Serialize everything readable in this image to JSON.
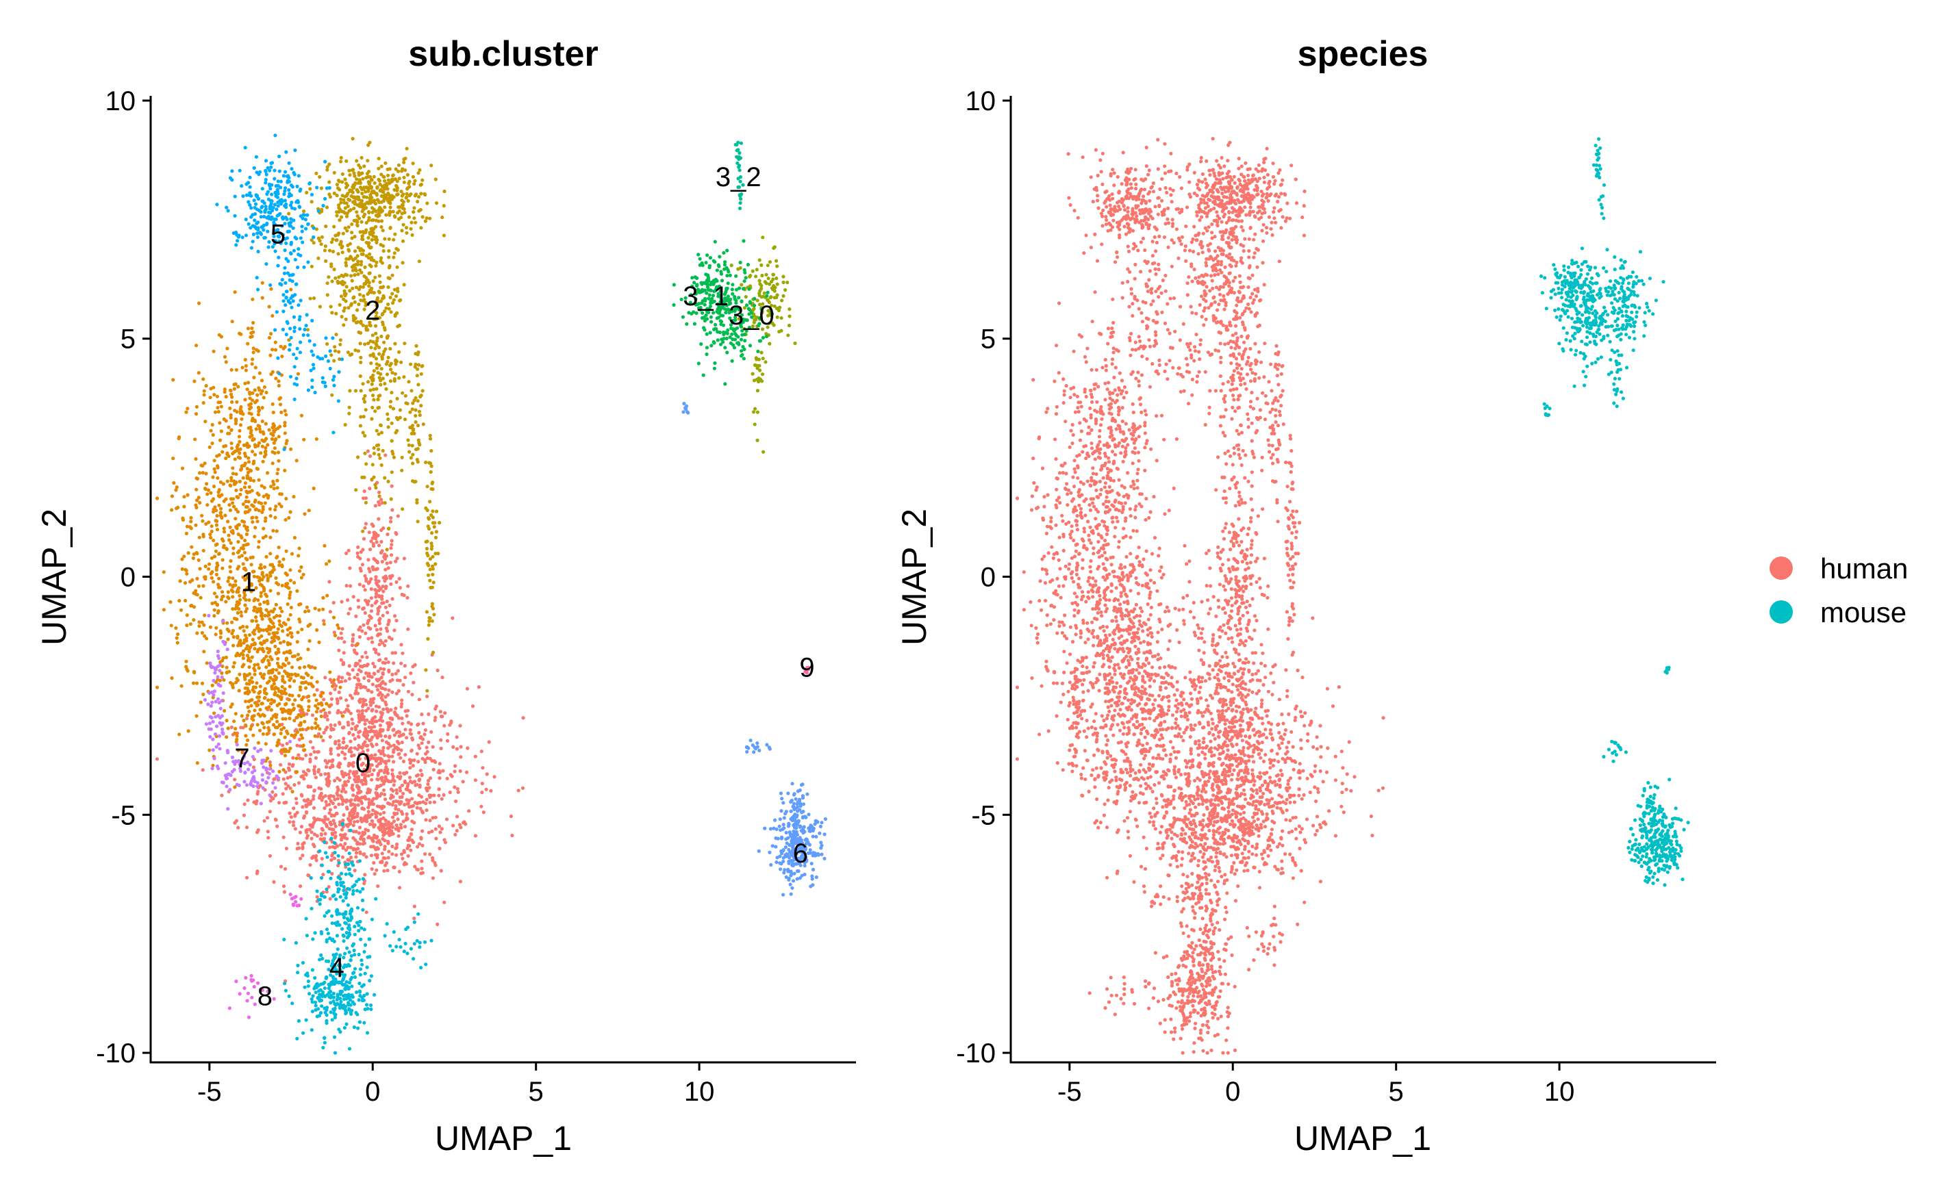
{
  "chart_data": [
    {
      "type": "scatter",
      "title": "sub.cluster",
      "xlabel": "UMAP_1",
      "ylabel": "UMAP_2",
      "xlim": [
        -6.8,
        14.8
      ],
      "ylim": [
        -10.2,
        10.1
      ],
      "xticks": [
        -5,
        0,
        5,
        10
      ],
      "yticks": [
        -10,
        -5,
        0,
        5,
        10
      ],
      "grid": false,
      "legend": "none",
      "point_size": 2.6,
      "clusters": [
        {
          "name": "0",
          "color": "#F8766D",
          "label_pos": [
            -0.3,
            -3.9
          ],
          "regions": [
            {
              "cx": -0.2,
              "cy": -4.3,
              "sx": 1.6,
              "sy": 1.0,
              "n": 1000
            },
            {
              "cx": -0.1,
              "cy": -2.2,
              "sx": 0.6,
              "sy": 1.3,
              "n": 380
            },
            {
              "cx": -0.3,
              "cy": -5.4,
              "sx": 1.2,
              "sy": 0.5,
              "n": 240
            },
            {
              "cx": 0.2,
              "cy": 0.4,
              "sx": 0.3,
              "sy": 0.9,
              "n": 130
            }
          ]
        },
        {
          "name": "1",
          "color": "#E38900",
          "label_pos": [
            -3.8,
            -0.1
          ],
          "regions": [
            {
              "cx": -4.3,
              "cy": 0.8,
              "sx": 0.9,
              "sy": 1.8,
              "n": 620
            },
            {
              "cx": -3.2,
              "cy": -1.6,
              "sx": 0.9,
              "sy": 1.0,
              "n": 420
            },
            {
              "cx": -3.6,
              "cy": 3.2,
              "sx": 0.6,
              "sy": 1.0,
              "n": 220
            },
            {
              "cx": -2.6,
              "cy": -2.8,
              "sx": 0.7,
              "sy": 0.5,
              "n": 160
            }
          ]
        },
        {
          "name": "2",
          "color": "#C49A00",
          "label_pos": [
            0.0,
            5.6
          ],
          "regions": [
            {
              "cx": 0.1,
              "cy": 8.0,
              "sx": 0.8,
              "sy": 0.4,
              "n": 380
            },
            {
              "cx": -0.4,
              "cy": 6.3,
              "sx": 0.6,
              "sy": 0.9,
              "n": 300
            },
            {
              "cx": 0.2,
              "cy": 4.0,
              "sx": 0.4,
              "sy": 1.2,
              "n": 200
            },
            {
              "cx": 1.8,
              "cy": 0.5,
              "sx": 0.1,
              "sy": 1.3,
              "n": 70
            },
            {
              "cx": 1.3,
              "cy": 3.2,
              "sx": 0.15,
              "sy": 0.9,
              "n": 60
            }
          ]
        },
        {
          "name": "3_0",
          "color": "#99A800",
          "label_pos": [
            11.6,
            5.5
          ],
          "regions": [
            {
              "cx": 12.0,
              "cy": 5.9,
              "sx": 0.4,
              "sy": 0.4,
              "n": 120
            },
            {
              "cx": 11.8,
              "cy": 4.4,
              "sx": 0.1,
              "sy": 0.6,
              "n": 30
            }
          ]
        },
        {
          "name": "3_1",
          "color": "#00BB4E",
          "label_pos": [
            10.2,
            5.9
          ],
          "regions": [
            {
              "cx": 10.4,
              "cy": 6.0,
              "sx": 0.4,
              "sy": 0.4,
              "n": 160
            },
            {
              "cx": 11.0,
              "cy": 5.4,
              "sx": 0.5,
              "sy": 0.5,
              "n": 160
            }
          ]
        },
        {
          "name": "3_2",
          "color": "#00BF96",
          "label_pos": [
            11.2,
            8.4
          ],
          "regions": [
            {
              "cx": 11.2,
              "cy": 8.7,
              "sx": 0.05,
              "sy": 0.3,
              "n": 20
            },
            {
              "cx": 11.3,
              "cy": 7.9,
              "sx": 0.05,
              "sy": 0.2,
              "n": 8
            }
          ]
        },
        {
          "name": "4",
          "color": "#00BBDA",
          "label_pos": [
            -1.1,
            -8.2
          ],
          "regions": [
            {
              "cx": -1.1,
              "cy": -8.7,
              "sx": 0.5,
              "sy": 0.5,
              "n": 260
            },
            {
              "cx": -0.9,
              "cy": -7.0,
              "sx": 0.4,
              "sy": 0.8,
              "n": 170
            },
            {
              "cx": 1.1,
              "cy": -7.7,
              "sx": 0.3,
              "sy": 0.3,
              "n": 25
            }
          ]
        },
        {
          "name": "5",
          "color": "#00ACFC",
          "label_pos": [
            -2.9,
            7.2
          ],
          "regions": [
            {
              "cx": -3.1,
              "cy": 7.8,
              "sx": 0.6,
              "sy": 0.5,
              "n": 280
            },
            {
              "cx": -2.5,
              "cy": 5.5,
              "sx": 0.3,
              "sy": 0.9,
              "n": 80
            },
            {
              "cx": -1.5,
              "cy": 4.4,
              "sx": 0.3,
              "sy": 0.4,
              "n": 30
            }
          ]
        },
        {
          "name": "6",
          "color": "#619CFF",
          "label_pos": [
            13.1,
            -5.8
          ],
          "regions": [
            {
              "cx": 13.0,
              "cy": -5.7,
              "sx": 0.4,
              "sy": 0.35,
              "n": 240
            },
            {
              "cx": 12.9,
              "cy": -4.9,
              "sx": 0.2,
              "sy": 0.3,
              "n": 60
            },
            {
              "cx": 11.8,
              "cy": -3.6,
              "sx": 0.2,
              "sy": 0.1,
              "n": 15
            },
            {
              "cx": 9.6,
              "cy": 3.5,
              "sx": 0.05,
              "sy": 0.1,
              "n": 8
            }
          ]
        },
        {
          "name": "7",
          "color": "#C77CFF",
          "label_pos": [
            -4.0,
            -3.8
          ],
          "regions": [
            {
              "cx": -4.8,
              "cy": -2.6,
              "sx": 0.15,
              "sy": 0.7,
              "n": 70
            },
            {
              "cx": -3.7,
              "cy": -4.1,
              "sx": 0.5,
              "sy": 0.3,
              "n": 80
            }
          ]
        },
        {
          "name": "8",
          "color": "#F066EA",
          "label_pos": [
            -3.3,
            -8.8
          ],
          "regions": [
            {
              "cx": -3.5,
              "cy": -8.7,
              "sx": 0.4,
              "sy": 0.2,
              "n": 20
            },
            {
              "cx": -2.4,
              "cy": -6.8,
              "sx": 0.1,
              "sy": 0.1,
              "n": 10
            }
          ]
        },
        {
          "name": "9",
          "color": "#FF67A4",
          "label_pos": [
            13.3,
            -1.9
          ],
          "regions": [
            {
              "cx": 13.3,
              "cy": -1.9,
              "sx": 0.05,
              "sy": 0.08,
              "n": 6
            }
          ]
        }
      ]
    },
    {
      "type": "scatter",
      "title": "species",
      "xlabel": "UMAP_1",
      "ylabel": "UMAP_2",
      "xlim": [
        -6.8,
        14.8
      ],
      "ylim": [
        -10.2,
        10.1
      ],
      "xticks": [
        -5,
        0,
        5,
        10
      ],
      "yticks": [
        -5,
        0,
        5,
        10,
        -10
      ],
      "grid": false,
      "legend": "right",
      "point_size": 2.6,
      "legend_items": [
        {
          "name": "human",
          "color": "#F8766D"
        },
        {
          "name": "mouse",
          "color": "#00BFC4"
        }
      ],
      "groups": [
        {
          "name": "human",
          "color": "#F8766D",
          "regions": [
            {
              "cx": -0.2,
              "cy": -4.3,
              "sx": 1.6,
              "sy": 1.0,
              "n": 1000
            },
            {
              "cx": -0.1,
              "cy": -2.2,
              "sx": 0.6,
              "sy": 1.3,
              "n": 380
            },
            {
              "cx": -0.3,
              "cy": -5.4,
              "sx": 1.2,
              "sy": 0.5,
              "n": 240
            },
            {
              "cx": 0.2,
              "cy": 0.4,
              "sx": 0.3,
              "sy": 0.9,
              "n": 130
            },
            {
              "cx": -4.3,
              "cy": 0.8,
              "sx": 0.9,
              "sy": 1.8,
              "n": 620
            },
            {
              "cx": -3.2,
              "cy": -1.6,
              "sx": 0.9,
              "sy": 1.0,
              "n": 420
            },
            {
              "cx": -3.6,
              "cy": 3.2,
              "sx": 0.6,
              "sy": 1.0,
              "n": 220
            },
            {
              "cx": -2.6,
              "cy": -2.8,
              "sx": 0.7,
              "sy": 0.5,
              "n": 160
            },
            {
              "cx": 0.1,
              "cy": 8.0,
              "sx": 0.8,
              "sy": 0.4,
              "n": 380
            },
            {
              "cx": -0.4,
              "cy": 6.3,
              "sx": 0.6,
              "sy": 0.9,
              "n": 300
            },
            {
              "cx": 0.2,
              "cy": 4.0,
              "sx": 0.4,
              "sy": 1.2,
              "n": 200
            },
            {
              "cx": 1.8,
              "cy": 0.5,
              "sx": 0.1,
              "sy": 1.3,
              "n": 70
            },
            {
              "cx": 1.3,
              "cy": 3.2,
              "sx": 0.15,
              "sy": 0.9,
              "n": 60
            },
            {
              "cx": -1.1,
              "cy": -8.7,
              "sx": 0.5,
              "sy": 0.5,
              "n": 260
            },
            {
              "cx": -0.9,
              "cy": -7.0,
              "sx": 0.4,
              "sy": 0.8,
              "n": 170
            },
            {
              "cx": 1.1,
              "cy": -7.7,
              "sx": 0.3,
              "sy": 0.3,
              "n": 25
            },
            {
              "cx": -3.1,
              "cy": 7.8,
              "sx": 0.6,
              "sy": 0.5,
              "n": 280
            },
            {
              "cx": -2.5,
              "cy": 5.5,
              "sx": 0.3,
              "sy": 0.9,
              "n": 80
            },
            {
              "cx": -1.5,
              "cy": 4.4,
              "sx": 0.3,
              "sy": 0.4,
              "n": 30
            },
            {
              "cx": -4.8,
              "cy": -2.6,
              "sx": 0.15,
              "sy": 0.7,
              "n": 70
            },
            {
              "cx": -3.7,
              "cy": -4.1,
              "sx": 0.5,
              "sy": 0.3,
              "n": 80
            },
            {
              "cx": -3.5,
              "cy": -8.7,
              "sx": 0.4,
              "sy": 0.2,
              "n": 20
            },
            {
              "cx": -2.4,
              "cy": -6.8,
              "sx": 0.1,
              "sy": 0.1,
              "n": 10
            }
          ]
        },
        {
          "name": "mouse",
          "color": "#00BFC4",
          "regions": [
            {
              "cx": 12.0,
              "cy": 5.9,
              "sx": 0.4,
              "sy": 0.4,
              "n": 120
            },
            {
              "cx": 11.8,
              "cy": 4.4,
              "sx": 0.1,
              "sy": 0.6,
              "n": 30
            },
            {
              "cx": 10.4,
              "cy": 6.0,
              "sx": 0.4,
              "sy": 0.4,
              "n": 160
            },
            {
              "cx": 11.0,
              "cy": 5.4,
              "sx": 0.5,
              "sy": 0.5,
              "n": 160
            },
            {
              "cx": 11.2,
              "cy": 8.7,
              "sx": 0.05,
              "sy": 0.3,
              "n": 20
            },
            {
              "cx": 11.3,
              "cy": 7.9,
              "sx": 0.05,
              "sy": 0.2,
              "n": 8
            },
            {
              "cx": 13.0,
              "cy": -5.7,
              "sx": 0.4,
              "sy": 0.35,
              "n": 240
            },
            {
              "cx": 12.9,
              "cy": -4.9,
              "sx": 0.2,
              "sy": 0.3,
              "n": 60
            },
            {
              "cx": 11.8,
              "cy": -3.6,
              "sx": 0.2,
              "sy": 0.1,
              "n": 15
            },
            {
              "cx": 9.6,
              "cy": 3.5,
              "sx": 0.05,
              "sy": 0.1,
              "n": 8
            },
            {
              "cx": 13.3,
              "cy": -1.9,
              "sx": 0.05,
              "sy": 0.08,
              "n": 6
            }
          ]
        }
      ]
    }
  ]
}
